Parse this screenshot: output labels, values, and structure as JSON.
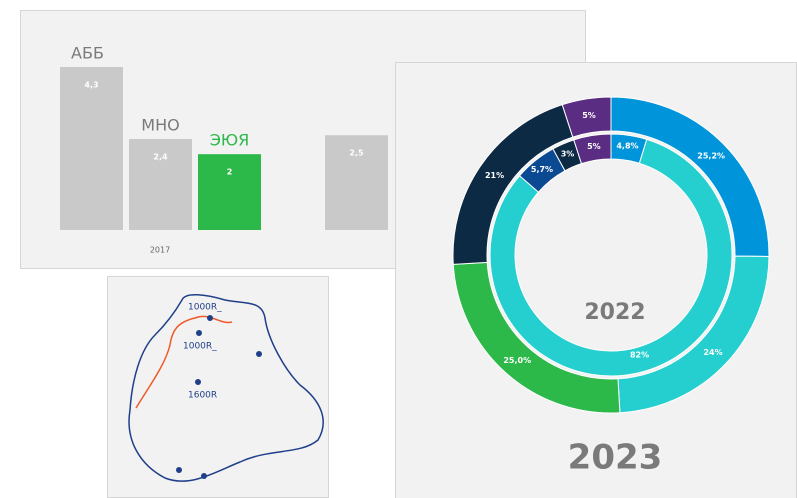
{
  "chart_data": [
    {
      "type": "bar",
      "categories": [
        "АББ",
        "МНО",
        "ЭЮЯ",
        null
      ],
      "values": [
        4.3,
        2.4,
        2,
        2.5
      ],
      "value_labels": [
        "4,3",
        "2,4",
        "2",
        "2,5"
      ],
      "colors": [
        "#c9c9c9",
        "#c9c9c9",
        "#2db84a",
        "#c9c9c9"
      ],
      "label_colors": [
        "#7a7a7a",
        "#7a7a7a",
        "#2db84a",
        "#7a7a7a"
      ],
      "group_label": "2017"
    },
    {
      "type": "donut",
      "title": "2023",
      "center_label": "2022",
      "rings": [
        {
          "values": [
            25.2,
            24,
            25.0,
            21,
            5
          ],
          "value_labels": [
            "25,2%",
            "24%",
            "25,0%",
            "21%",
            "5%"
          ],
          "colors": [
            "#0095da",
            "#26cfcf",
            "#2db84a",
            "#0d2a45",
            "#5a2d82"
          ]
        },
        {
          "values": [
            4.8,
            82,
            5.7,
            3,
            5
          ],
          "value_labels": [
            "4,8%",
            "82%",
            "5,7%",
            "3%",
            "5%"
          ],
          "colors": [
            "#0095da",
            "#26cfcf",
            "#0b4a93",
            "#0d2a45",
            "#5a2d82"
          ]
        }
      ]
    }
  ],
  "map": {
    "labels": [
      "1000R_",
      "1000R_",
      "1600R"
    ]
  }
}
